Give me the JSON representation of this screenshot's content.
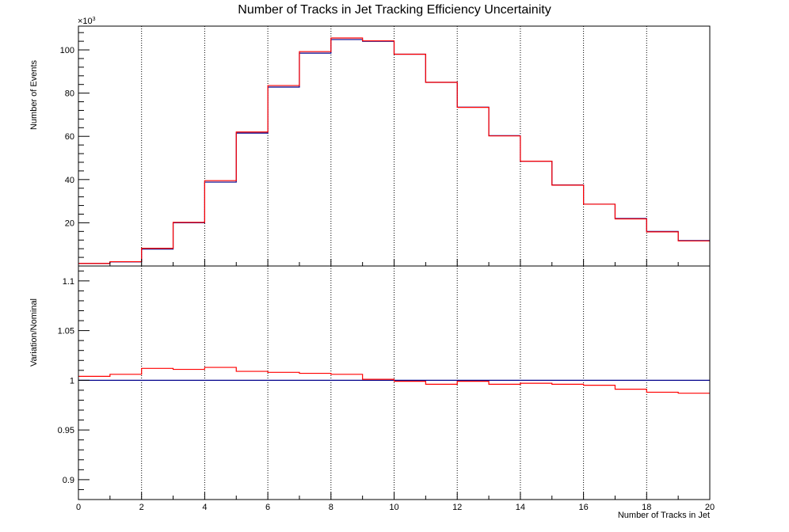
{
  "chart_data": [
    {
      "type": "line",
      "title": "Number of Tracks in Jet Tracking Efficiency Uncertainity",
      "ylabel": "Number of Events",
      "y_exponent_label": "×10",
      "y_exponent_power": "3",
      "xlim": [
        0,
        20
      ],
      "ylim": [
        0,
        111
      ],
      "x_ticks": [
        "0",
        "2",
        "4",
        "6",
        "8",
        "10",
        "12",
        "14",
        "16",
        "18",
        "20"
      ],
      "y_ticks": [
        "20",
        "40",
        "60",
        "80",
        "100"
      ],
      "y_tick_values": [
        20,
        40,
        60,
        80,
        100
      ],
      "grid": "vertical dotted",
      "bin_edges": [
        0,
        1,
        2,
        3,
        4,
        5,
        6,
        7,
        8,
        9,
        10,
        11,
        12,
        13,
        14,
        15,
        16,
        17,
        18,
        19,
        20
      ],
      "series": [
        {
          "color": "#00008b",
          "values": [
            1.2,
            1.9,
            7.8,
            20.0,
            38.8,
            61.5,
            82.8,
            98.5,
            104.8,
            104.0,
            98.0,
            85.0,
            73.5,
            60.3,
            48.5,
            37.5,
            28.6,
            22.0,
            16.0,
            11.8
          ]
        },
        {
          "color": "#ff0000",
          "values": [
            1.2,
            2.0,
            8.2,
            20.2,
            39.5,
            62.0,
            83.5,
            99.2,
            105.5,
            104.2,
            98.0,
            85.0,
            73.4,
            60.2,
            48.5,
            37.4,
            28.6,
            21.8,
            15.8,
            11.6
          ]
        }
      ]
    },
    {
      "type": "line",
      "ylabel": "Variation/Nominal",
      "xlabel": "Number of Tracks in Jet",
      "xlim": [
        0,
        20
      ],
      "ylim": [
        0.88,
        1.115
      ],
      "x_ticks": [
        "0",
        "2",
        "4",
        "6",
        "8",
        "10",
        "12",
        "14",
        "16",
        "18",
        "20"
      ],
      "y_ticks": [
        "0.9",
        "0.95",
        "1",
        "1.05",
        "1.1"
      ],
      "y_tick_values": [
        0.9,
        0.95,
        1.0,
        1.05,
        1.1
      ],
      "grid": "vertical dotted",
      "bin_edges": [
        0,
        1,
        2,
        3,
        4,
        5,
        6,
        7,
        8,
        9,
        10,
        11,
        12,
        13,
        14,
        15,
        16,
        17,
        18,
        19,
        20
      ],
      "reference_line": {
        "value": 1.0,
        "color": "#00008b"
      },
      "series": [
        {
          "color": "#ff0000",
          "values": [
            1.004,
            1.006,
            1.012,
            1.011,
            1.013,
            1.009,
            1.008,
            1.007,
            1.006,
            1.001,
            0.999,
            0.996,
            0.999,
            0.996,
            0.997,
            0.996,
            0.995,
            0.991,
            0.988,
            0.987
          ]
        }
      ]
    }
  ]
}
